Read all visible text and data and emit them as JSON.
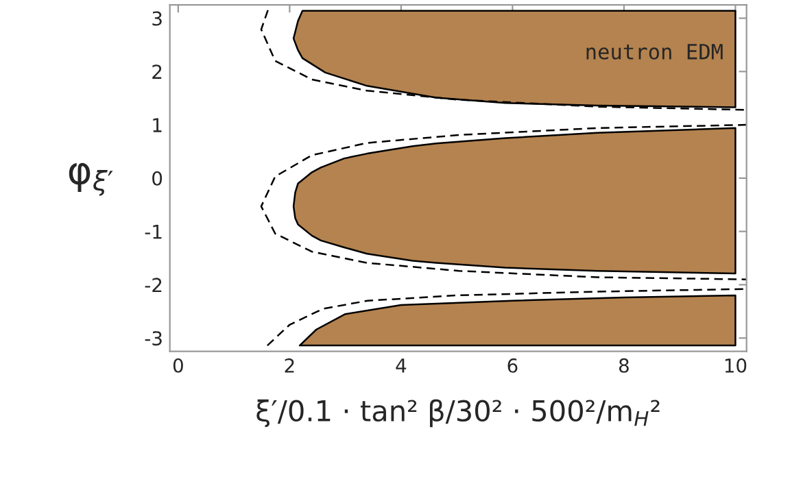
{
  "chart_data": {
    "type": "area",
    "xlabel": "ξ′/0.1 · tan² β/30² · 500²/m$_{H}$²",
    "ylabel": "φ$_{ξ′}$",
    "annotations": [
      "neutron EDM"
    ],
    "xlim": [
      -0.15,
      10.2
    ],
    "ylim": [
      -3.25,
      3.25
    ],
    "xticks": [
      0,
      2,
      4,
      6,
      8,
      10
    ],
    "yticks": [
      -3,
      -2,
      -1,
      0,
      1,
      2,
      3
    ],
    "grid": false,
    "legend": false,
    "series": [
      {
        "color": "#b5834f",
        "x": [
          2.07,
          2.15,
          2.23,
          10,
          10,
          7.52,
          5.87,
          4.63,
          3.39,
          2.64,
          2.23,
          2.15
        ],
        "values": [
          2.62,
          2.95,
          3.14,
          3.14,
          1.33,
          1.36,
          1.41,
          1.51,
          1.73,
          1.98,
          2.25,
          2.4
        ]
      },
      {
        "color": "#b5834f",
        "x": [
          10,
          7.52,
          5.87,
          4.63,
          4.21,
          3.39,
          2.98,
          2.56,
          2.4,
          2.15,
          2.1,
          2.07,
          2.1,
          2.15,
          2.4,
          2.56,
          2.98,
          3.39,
          4.21,
          4.63,
          5.87,
          7.52,
          10
        ],
        "values": [
          0.94,
          0.85,
          0.75,
          0.65,
          0.6,
          0.46,
          0.37,
          0.2,
          0.11,
          -0.1,
          -0.27,
          -0.53,
          -0.75,
          -0.87,
          -1.08,
          -1.17,
          -1.3,
          -1.42,
          -1.55,
          -1.59,
          -1.68,
          -1.74,
          -1.79
        ]
      },
      {
        "color": "#b5834f",
        "x": [
          2.18,
          2.48,
          3,
          4,
          6,
          8,
          10,
          10
        ],
        "values": [
          -3.14,
          -2.84,
          -2.55,
          -2.38,
          -2.3,
          -2.24,
          -2.2,
          -3.14
        ]
      },
      {
        "type": "line",
        "color": "#000000",
        "line_style": "dashed",
        "x": [
          1.61,
          1.49,
          1.74,
          2.4,
          3.39,
          5.04,
          7.52,
          10.2
        ],
        "values": [
          3.15,
          2.79,
          2.2,
          1.85,
          1.64,
          1.47,
          1.34,
          1.28
        ]
      },
      {
        "type": "line",
        "color": "#000000",
        "line_style": "dashed",
        "x": [
          10.2,
          7.52,
          5.04,
          3.39,
          2.4,
          1.74,
          1.49,
          1.74,
          2.4,
          3.39,
          5.04,
          7.52,
          10.2
        ],
        "values": [
          1.0,
          0.94,
          0.81,
          0.66,
          0.43,
          0.03,
          -0.53,
          -1.04,
          -1.38,
          -1.59,
          -1.74,
          -1.86,
          -1.9
        ]
      },
      {
        "type": "line",
        "color": "#000000",
        "line_style": "dashed",
        "x": [
          1.6,
          2.0,
          2.6,
          3.4,
          5,
          7.5,
          10.2
        ],
        "values": [
          -3.14,
          -2.75,
          -2.45,
          -2.3,
          -2.2,
          -2.13,
          -2.08
        ]
      }
    ]
  }
}
